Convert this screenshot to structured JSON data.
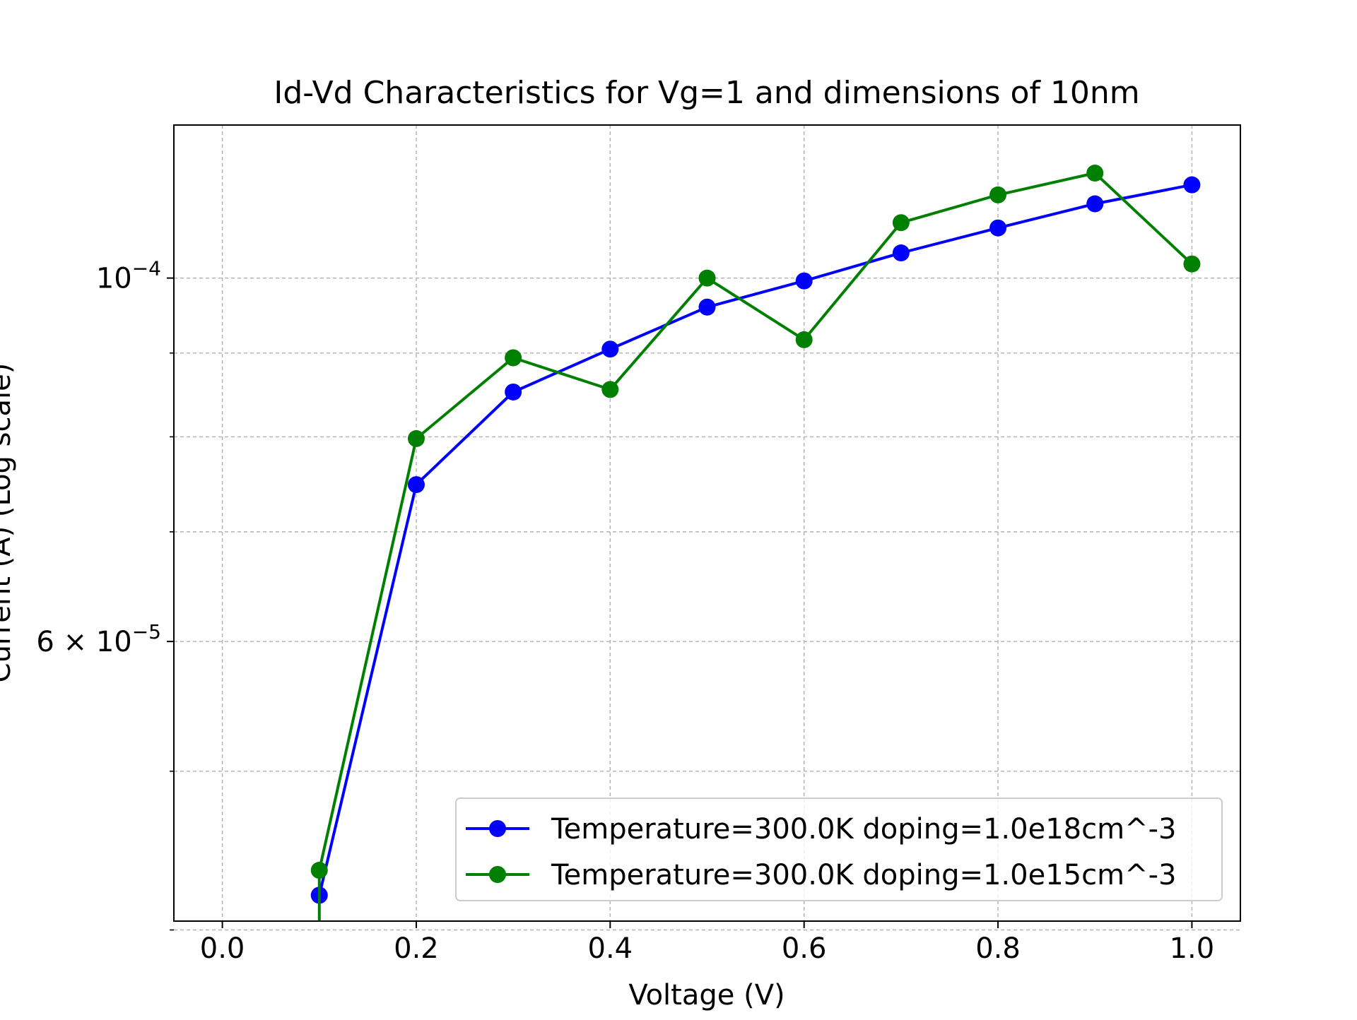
{
  "chart_data": {
    "type": "line",
    "title": "Id-Vd Characteristics for Vg=1 and dimensions of 10nm",
    "xlabel": "Voltage (V)",
    "ylabel": "Current (A) (Log scale)",
    "yscale": "log",
    "xlim": [
      -0.05,
      1.05
    ],
    "ylim": [
      4.05e-05,
      0.000124
    ],
    "grid": true,
    "legend_position": "lower-right",
    "x_ticks": [
      0.0,
      0.2,
      0.4,
      0.6,
      0.8,
      1.0
    ],
    "x_tick_labels": [
      "0.0",
      "0.2",
      "0.4",
      "0.6",
      "0.8",
      "1.0"
    ],
    "y_major_ticks": [
      {
        "value": 0.0001,
        "mant": "",
        "base": "10",
        "exp": "−4"
      },
      {
        "value": 6e-05,
        "mant": "6 × ",
        "base": "10",
        "exp": "−5"
      }
    ],
    "y_minor_ticks": [
      4e-05,
      5e-05,
      7e-05,
      8e-05,
      9e-05
    ],
    "x": [
      0.1,
      0.2,
      0.3,
      0.4,
      0.5,
      0.6,
      0.7,
      0.8,
      0.9,
      1.0
    ],
    "series": [
      {
        "name": "Temperature=300.0K doping=1.0e18cm^-3",
        "color": "#0000ff",
        "marker": "circle",
        "values": [
          4.2e-05,
          7.48e-05,
          8.52e-05,
          9.05e-05,
          9.6e-05,
          9.96e-05,
          0.0001036,
          0.0001073,
          0.000111,
          0.000114
        ]
      },
      {
        "name": "Temperature=300.0K doping=1.0e15cm^-3",
        "color": "#008000",
        "marker": "circle",
        "values": [
          4.35e-05,
          7.98e-05,
          8.94e-05,
          8.55e-05,
          0.0001,
          9.17e-05,
          0.0001081,
          0.0001124,
          0.0001159,
          0.000102
        ]
      }
    ]
  }
}
